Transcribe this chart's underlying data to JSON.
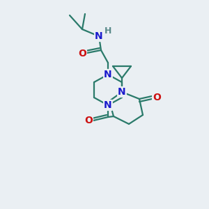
{
  "bg_color": "#eaeff3",
  "bond_color": "#2a7a6a",
  "N_color": "#1a1acc",
  "O_color": "#cc1111",
  "H_color": "#5a8a8a",
  "line_width": 1.6,
  "font_size": 10,
  "figsize": [
    3.0,
    3.0
  ],
  "dpi": 100,
  "xlim": [
    0,
    300
  ],
  "ylim": [
    0,
    300
  ]
}
